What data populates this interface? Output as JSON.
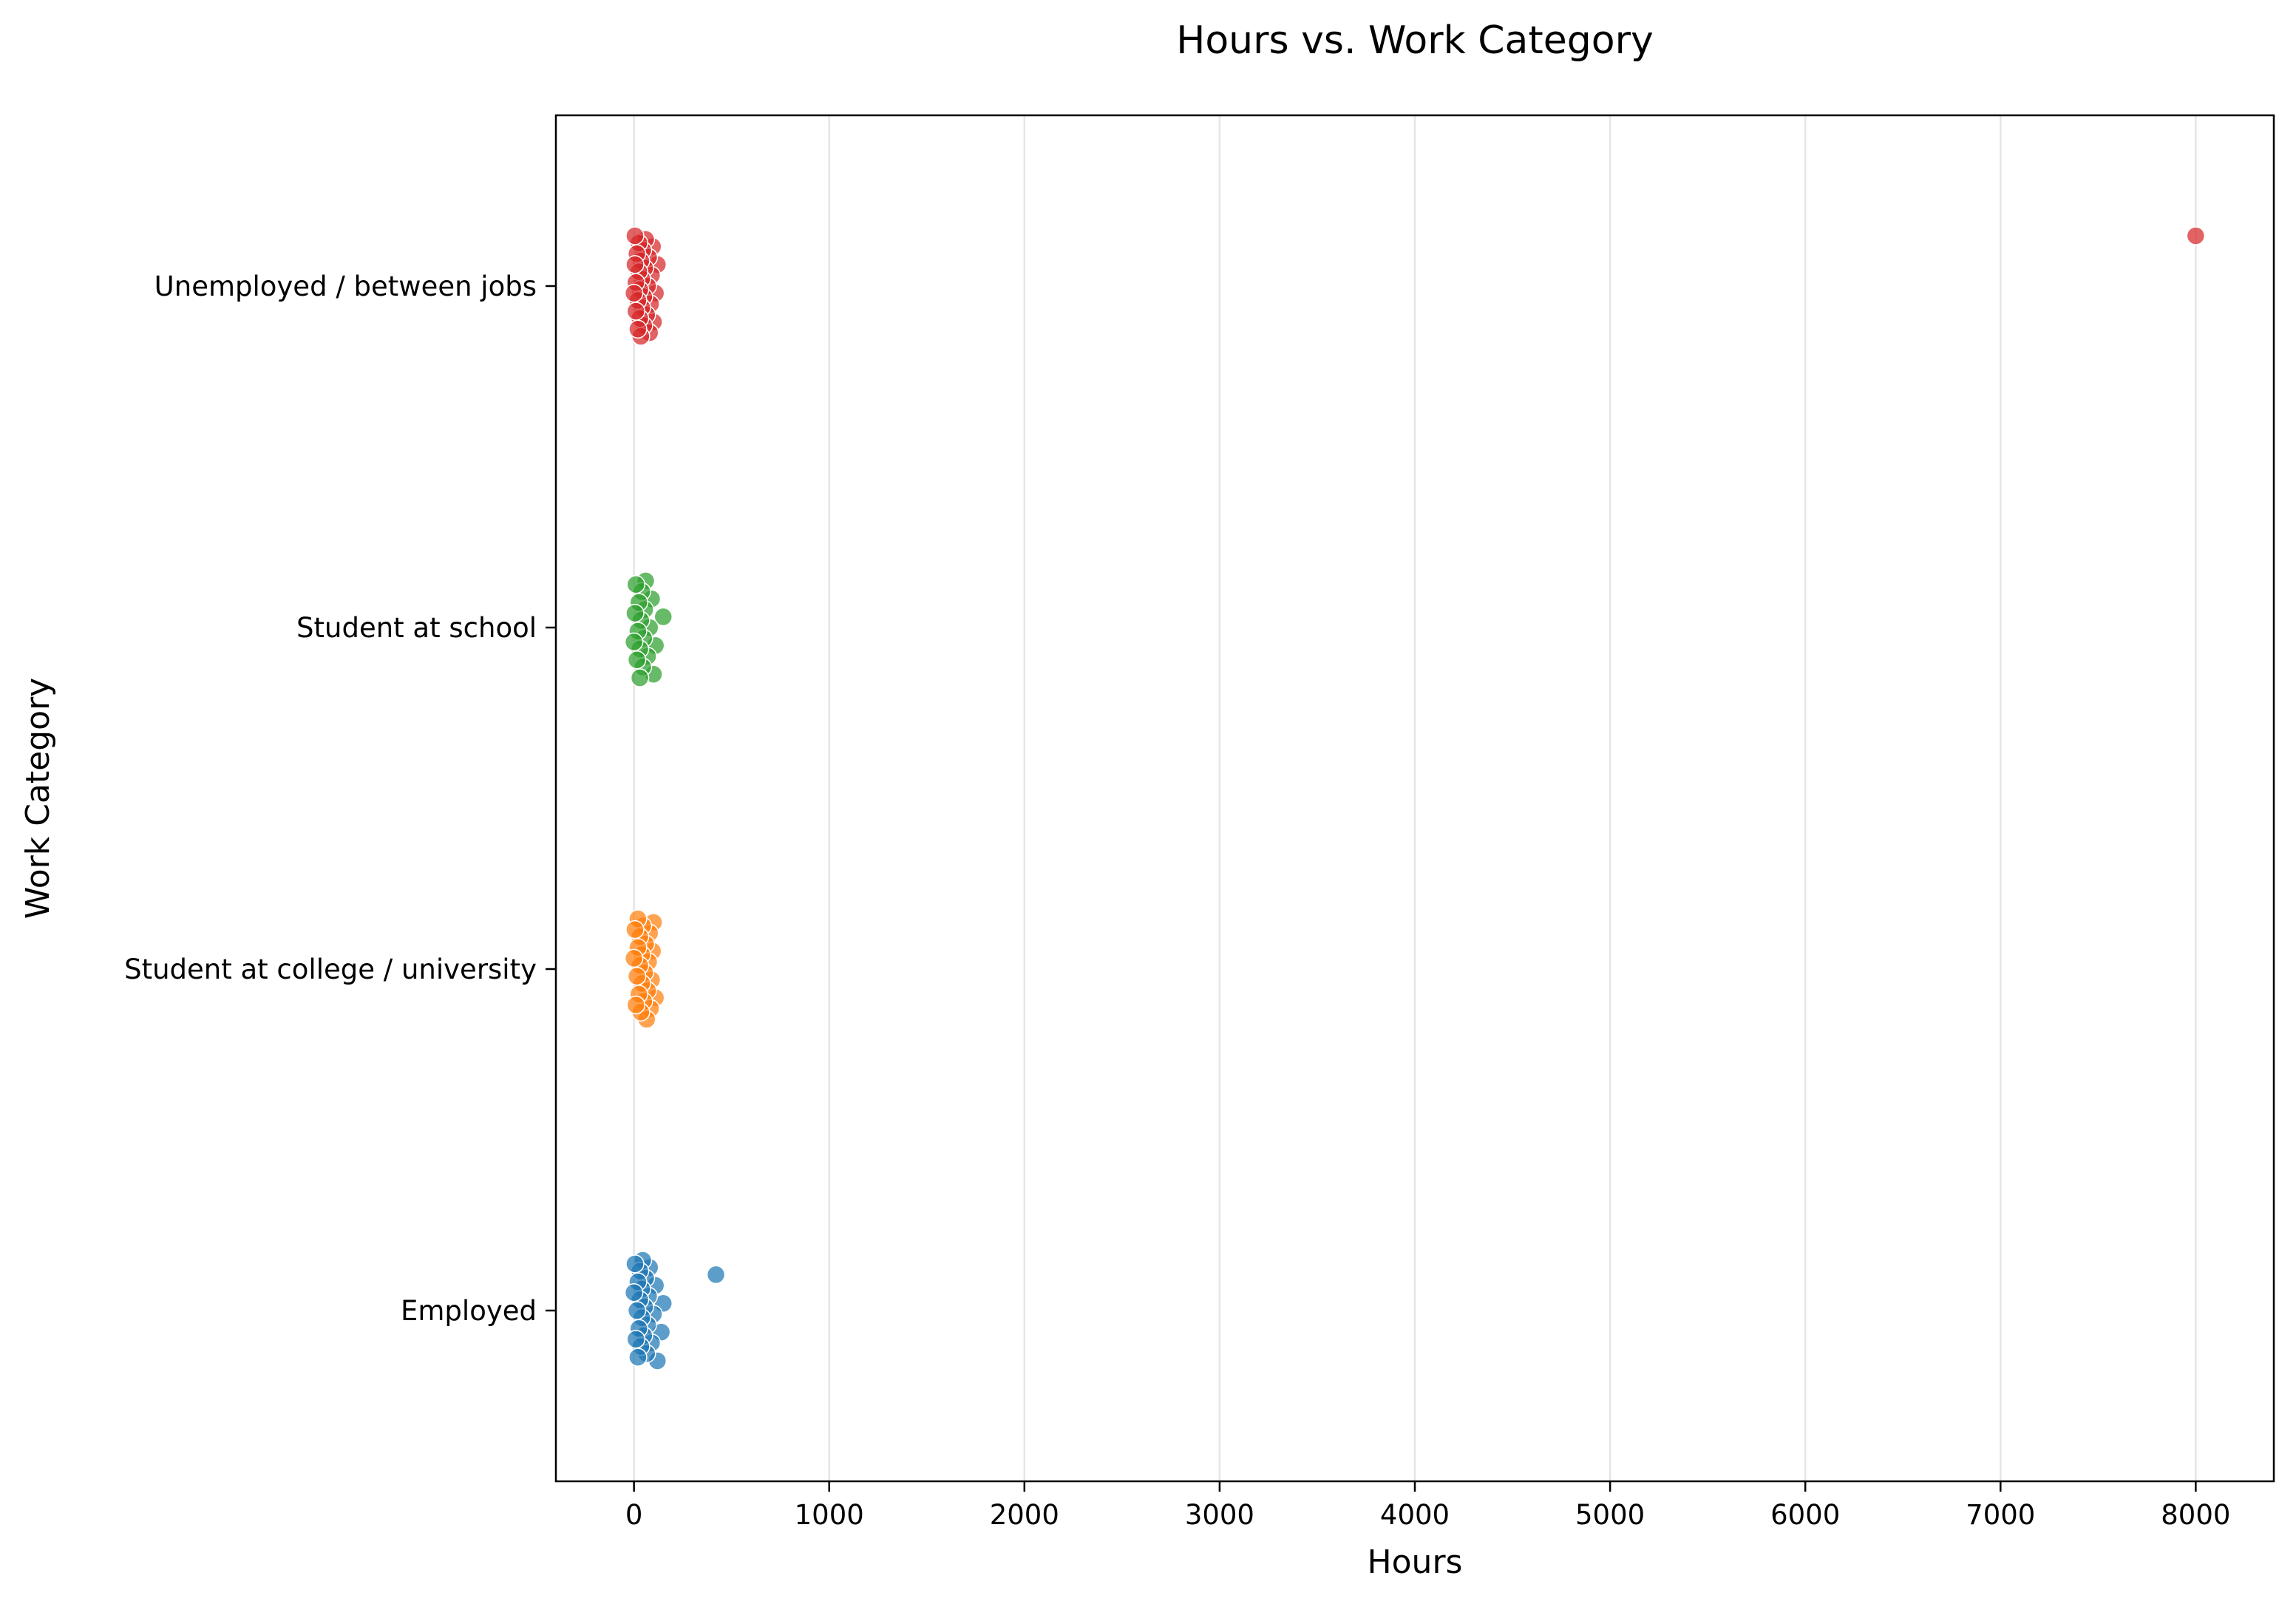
{
  "chart_data": {
    "type": "scatter",
    "title": "Hours vs. Work Category",
    "xlabel": "Hours",
    "ylabel": "Work Category",
    "xlim": [
      -400,
      8400
    ],
    "xticks": [
      0,
      1000,
      2000,
      3000,
      4000,
      5000,
      6000,
      7000,
      8000
    ],
    "xtick_labels": [
      "0",
      "1000",
      "2000",
      "3000",
      "4000",
      "5000",
      "6000",
      "7000",
      "8000"
    ],
    "categories": [
      "Unemployed / between jobs",
      "Student at school",
      "Student at college / university",
      "Employed"
    ],
    "grid": "vertical",
    "legend": "none",
    "colors": {
      "Unemployed / between jobs": "#d62728",
      "Student at school": "#2ca02c",
      "Student at college / university": "#ff7f0e",
      "Employed": "#1f77b4"
    },
    "series": [
      {
        "category": "Unemployed / between jobs",
        "values": [
          8000,
          120,
          110,
          100,
          95,
          90,
          85,
          80,
          75,
          70,
          65,
          60,
          55,
          50,
          50,
          45,
          40,
          40,
          35,
          35,
          30,
          30,
          25,
          25,
          20,
          20,
          15,
          10,
          10,
          5,
          5,
          0
        ]
      },
      {
        "category": "Student at school",
        "values": [
          150,
          110,
          100,
          90,
          80,
          70,
          60,
          55,
          50,
          45,
          40,
          35,
          30,
          30,
          25,
          20,
          15,
          10,
          5,
          0
        ]
      },
      {
        "category": "Student at college / university",
        "values": [
          110,
          100,
          95,
          90,
          85,
          80,
          75,
          70,
          65,
          60,
          55,
          50,
          45,
          40,
          40,
          35,
          30,
          30,
          25,
          20,
          20,
          15,
          10,
          5,
          0
        ]
      },
      {
        "category": "Employed",
        "values": [
          420,
          150,
          140,
          120,
          110,
          100,
          90,
          80,
          75,
          70,
          65,
          60,
          55,
          50,
          45,
          40,
          40,
          35,
          30,
          30,
          25,
          20,
          20,
          15,
          10,
          5,
          0
        ]
      }
    ]
  }
}
